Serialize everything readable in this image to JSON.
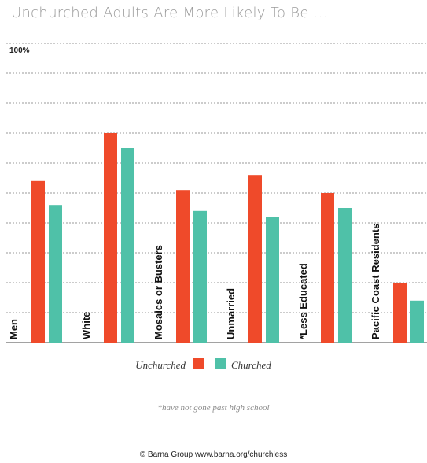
{
  "chart_data": {
    "type": "bar",
    "title": "Unchurched Adults Are More Likely To Be ...",
    "y_top_label": "100%",
    "ylim": [
      0,
      100
    ],
    "y_gridlines": [
      10,
      20,
      30,
      40,
      50,
      60,
      70,
      80,
      90,
      100
    ],
    "categories": [
      "Men",
      "White",
      "Mosaics or Busters",
      "Unmarried",
      "*Less Educated",
      "Pacific Coast Residents"
    ],
    "series": [
      {
        "name": "Unchurched",
        "color": "#ef4a2a",
        "values": [
          54,
          70,
          51,
          56,
          50,
          20
        ]
      },
      {
        "name": "Churched",
        "color": "#4fc1a8",
        "values": [
          46,
          65,
          44,
          42,
          45,
          14
        ]
      }
    ],
    "legend_position": "bottom-center",
    "grid": true
  },
  "footnote": "*have not gone past high school",
  "source": "© Barna Group www.barna.org/churchless"
}
